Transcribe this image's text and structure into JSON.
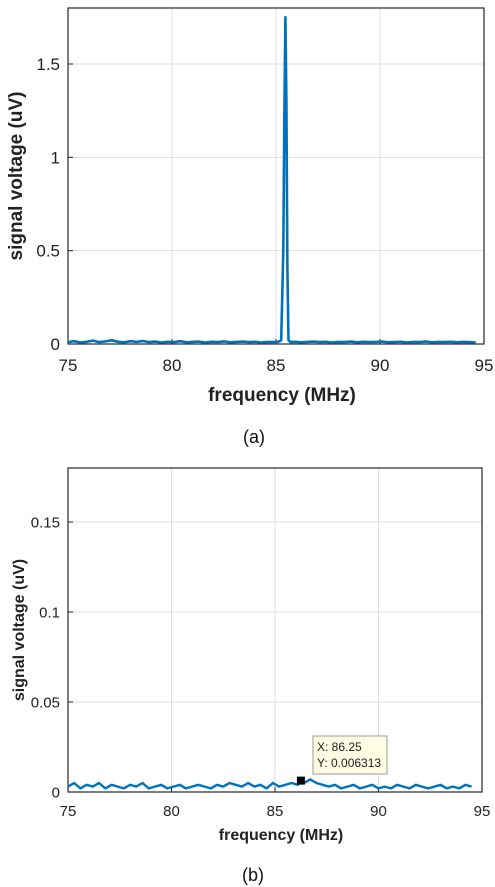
{
  "chart_data": [
    {
      "type": "line",
      "caption": "(a)",
      "xlabel": "frequency (MHz)",
      "ylabel": "signal voltage (uV)",
      "xlim": [
        75,
        95
      ],
      "ylim": [
        0,
        1.8
      ],
      "xticks": [
        75,
        80,
        85,
        90,
        95
      ],
      "xtick_labels": [
        "75",
        "80",
        "85",
        "90",
        "95"
      ],
      "yticks": [
        0,
        0.5,
        1,
        1.5
      ],
      "ytick_labels": [
        "0",
        "0.5",
        "1",
        "1.5"
      ],
      "grid": true,
      "color": "#0072BD",
      "x": [
        75.0,
        75.3,
        75.6,
        75.9,
        76.2,
        76.5,
        76.8,
        77.1,
        77.4,
        77.7,
        78.0,
        78.3,
        78.6,
        78.9,
        79.2,
        79.5,
        79.8,
        80.1,
        80.4,
        80.7,
        81.0,
        81.3,
        81.6,
        81.9,
        82.2,
        82.5,
        82.8,
        83.1,
        83.4,
        83.7,
        84.0,
        84.3,
        84.6,
        84.9,
        85.1,
        85.25,
        85.35,
        85.4,
        85.45,
        85.5,
        85.55,
        85.6,
        85.7,
        85.9,
        86.2,
        86.5,
        86.8,
        87.1,
        87.4,
        87.7,
        88.0,
        88.3,
        88.6,
        88.9,
        89.2,
        89.5,
        89.8,
        90.1,
        90.4,
        90.7,
        91.0,
        91.3,
        91.6,
        91.9,
        92.2,
        92.5,
        92.8,
        93.1,
        93.4,
        93.7,
        94.0,
        94.3,
        94.6
      ],
      "y": [
        0.01,
        0.015,
        0.008,
        0.012,
        0.018,
        0.01,
        0.014,
        0.02,
        0.012,
        0.009,
        0.015,
        0.011,
        0.016,
        0.01,
        0.013,
        0.008,
        0.012,
        0.01,
        0.015,
        0.009,
        0.011,
        0.013,
        0.008,
        0.012,
        0.01,
        0.014,
        0.009,
        0.011,
        0.013,
        0.01,
        0.012,
        0.008,
        0.011,
        0.01,
        0.012,
        0.02,
        0.5,
        1.2,
        1.75,
        1.3,
        0.4,
        0.02,
        0.01,
        0.012,
        0.009,
        0.011,
        0.013,
        0.01,
        0.012,
        0.008,
        0.011,
        0.01,
        0.013,
        0.009,
        0.012,
        0.01,
        0.011,
        0.013,
        0.009,
        0.01,
        0.012,
        0.008,
        0.011,
        0.01,
        0.013,
        0.009,
        0.011,
        0.01,
        0.012,
        0.009,
        0.011,
        0.01,
        0.008
      ]
    },
    {
      "type": "line",
      "caption": "(b)",
      "xlabel": "frequency (MHz)",
      "ylabel": "signal voltage (uV)",
      "xlim": [
        75,
        95
      ],
      "ylim": [
        0,
        0.18
      ],
      "xticks": [
        75,
        80,
        85,
        90,
        95
      ],
      "xtick_labels": [
        "75",
        "80",
        "85",
        "90",
        "95"
      ],
      "yticks": [
        0,
        0.05,
        0.1,
        0.15
      ],
      "ytick_labels": [
        "0",
        "0.05",
        "0.1",
        "0.15"
      ],
      "grid": true,
      "color": "#0072BD",
      "x": [
        75.0,
        75.3,
        75.6,
        75.9,
        76.2,
        76.5,
        76.8,
        77.1,
        77.4,
        77.7,
        78.0,
        78.3,
        78.6,
        78.9,
        79.2,
        79.5,
        79.8,
        80.1,
        80.4,
        80.7,
        81.0,
        81.3,
        81.6,
        81.9,
        82.2,
        82.5,
        82.8,
        83.1,
        83.4,
        83.7,
        84.0,
        84.3,
        84.6,
        84.9,
        85.2,
        85.5,
        85.8,
        86.1,
        86.25,
        86.4,
        86.7,
        87.0,
        87.3,
        87.6,
        87.9,
        88.2,
        88.5,
        88.8,
        89.1,
        89.4,
        89.7,
        90.0,
        90.3,
        90.6,
        90.9,
        91.2,
        91.5,
        91.8,
        92.1,
        92.4,
        92.7,
        93.0,
        93.3,
        93.6,
        93.9,
        94.2,
        94.5
      ],
      "y": [
        0.003,
        0.005,
        0.002,
        0.004,
        0.003,
        0.005,
        0.002,
        0.004,
        0.003,
        0.002,
        0.004,
        0.003,
        0.005,
        0.002,
        0.003,
        0.004,
        0.002,
        0.003,
        0.004,
        0.002,
        0.003,
        0.004,
        0.003,
        0.002,
        0.004,
        0.003,
        0.005,
        0.004,
        0.003,
        0.005,
        0.003,
        0.004,
        0.002,
        0.005,
        0.003,
        0.004,
        0.005,
        0.004,
        0.0063,
        0.005,
        0.007,
        0.005,
        0.004,
        0.003,
        0.004,
        0.002,
        0.003,
        0.004,
        0.002,
        0.003,
        0.004,
        0.002,
        0.003,
        0.002,
        0.004,
        0.003,
        0.002,
        0.004,
        0.003,
        0.002,
        0.003,
        0.004,
        0.002,
        0.003,
        0.002,
        0.004,
        0.003
      ],
      "annotation": {
        "marker_x": 86.25,
        "marker_y": 0.006313,
        "x_text": "X: 86.25",
        "y_text": "Y: 0.006313"
      }
    }
  ]
}
